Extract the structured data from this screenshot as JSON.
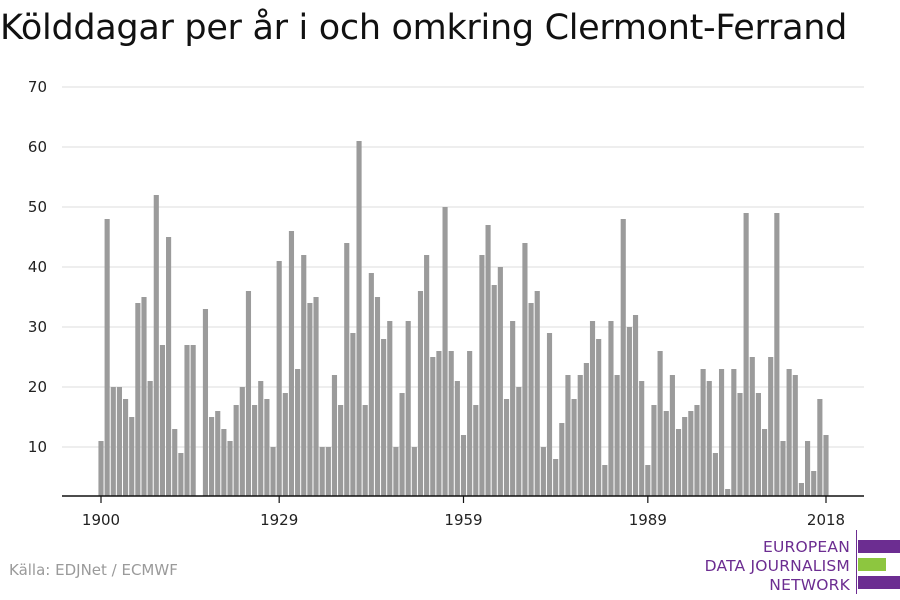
{
  "title": "Kölddagar per år i och omkring Clermont-Ferrand",
  "source": "Källa: EDJNet / ECMWF",
  "logo": {
    "lines": [
      "EUROPEAN",
      "DATA JOURNALISM",
      "NETWORK"
    ],
    "colors": {
      "purple": "#6c2d91",
      "green": "#8dc63f"
    }
  },
  "colors": {
    "bar": "#9b9b9b",
    "grid": "#dddddd",
    "axis": "#111111"
  },
  "chart_data": {
    "type": "bar",
    "title": "Kölddagar per år i och omkring Clermont-Ferrand",
    "xlabel": "",
    "ylabel": "",
    "x_ticks": [
      "1900",
      "1929",
      "1959",
      "1989",
      "2018"
    ],
    "y_ticks": [
      10,
      20,
      30,
      40,
      50,
      60,
      70
    ],
    "ylim": [
      2,
      70
    ],
    "grid": true,
    "x": [
      1900,
      1901,
      1902,
      1903,
      1904,
      1905,
      1906,
      1907,
      1908,
      1909,
      1910,
      1911,
      1912,
      1913,
      1914,
      1915,
      1916,
      1917,
      1918,
      1919,
      1920,
      1921,
      1922,
      1923,
      1924,
      1925,
      1926,
      1927,
      1928,
      1929,
      1930,
      1931,
      1932,
      1933,
      1934,
      1935,
      1936,
      1937,
      1938,
      1939,
      1940,
      1941,
      1942,
      1943,
      1944,
      1945,
      1946,
      1947,
      1948,
      1949,
      1950,
      1951,
      1952,
      1953,
      1954,
      1955,
      1956,
      1957,
      1958,
      1959,
      1960,
      1961,
      1962,
      1963,
      1964,
      1965,
      1966,
      1967,
      1968,
      1969,
      1970,
      1971,
      1972,
      1973,
      1974,
      1975,
      1976,
      1977,
      1978,
      1979,
      1980,
      1981,
      1982,
      1983,
      1984,
      1985,
      1986,
      1987,
      1988,
      1989,
      1990,
      1991,
      1992,
      1993,
      1994,
      1995,
      1996,
      1997,
      1998,
      1999,
      2000,
      2001,
      2002,
      2003,
      2004,
      2005,
      2006,
      2007,
      2008,
      2009,
      2010,
      2011,
      2012,
      2013,
      2014,
      2015,
      2016,
      2017,
      2018
    ],
    "values": [
      11,
      48,
      20,
      20,
      18,
      15,
      34,
      35,
      21,
      52,
      27,
      45,
      13,
      9,
      27,
      27,
      null,
      33,
      15,
      16,
      13,
      11,
      17,
      20,
      36,
      17,
      21,
      18,
      10,
      41,
      19,
      46,
      23,
      42,
      34,
      35,
      10,
      10,
      22,
      17,
      44,
      29,
      61,
      17,
      39,
      35,
      28,
      31,
      10,
      19,
      31,
      10,
      36,
      42,
      25,
      26,
      50,
      26,
      21,
      12,
      26,
      17,
      42,
      47,
      37,
      40,
      18,
      31,
      20,
      44,
      34,
      36,
      10,
      29,
      8,
      14,
      22,
      18,
      22,
      24,
      31,
      28,
      7,
      31,
      22,
      48,
      30,
      32,
      21,
      7,
      17,
      26,
      16,
      22,
      13,
      15,
      16,
      17,
      23,
      21,
      9,
      23,
      3,
      23,
      19,
      49,
      25,
      19,
      13,
      25,
      49,
      11,
      23,
      22,
      4,
      11,
      6,
      18,
      12
    ]
  }
}
